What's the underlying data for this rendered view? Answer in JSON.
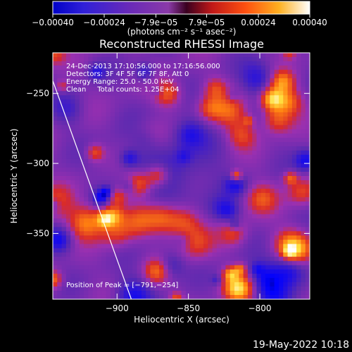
{
  "chart_data": {
    "type": "heatmap",
    "title": "Reconstructed RHESSI Image",
    "xlabel": "Heliocentric X (arcsec)",
    "ylabel": "Heliocentric Y (arcsec)",
    "xlim": [
      -945,
      -765
    ],
    "ylim": [
      -397,
      -221
    ],
    "x_ticks": [
      -900,
      -850,
      -800
    ],
    "x_tick_labels": [
      "−900",
      "−850",
      "−800"
    ],
    "y_ticks": [
      -250,
      -300,
      -350
    ],
    "y_tick_labels": [
      "−250",
      "−300",
      "−350"
    ],
    "colorbar": {
      "min": -0.0004,
      "max": 0.0004,
      "tick_values": [
        -0.0004,
        -0.00024,
        -7.9e-05,
        7.9e-05,
        0.00024,
        0.0004
      ],
      "tick_labels": [
        "−0.00040",
        "−0.00024",
        "−7.9e−05",
        "7.9e−05",
        "0.00024",
        "0.00040"
      ],
      "units_label": "(photons cm⁻² s⁻¹ asec⁻²)"
    },
    "annotations": [
      "24-Dec-2013 17:10:56.000 to 17:16:56.000",
      "Detectors: 3F 4F 5F 6F 7F 8F, Att 0",
      "Energy Range: 25.0 - 50.0 keV",
      "Clean     Total counts: 1.25E+04"
    ],
    "peak_label": "Position of Peak = [−791,−254]",
    "peak_position": [
      -791,
      -254
    ],
    "limb_points": [
      [
        -945,
        -241
      ],
      [
        -890,
        -397
      ]
    ],
    "colors": {
      "colormap": [
        "#000000",
        "#0000ff",
        "#5a2ab0",
        "#9a30b0",
        "#d82a2a",
        "#ff8010",
        "#ffe040",
        "#ffffff"
      ],
      "axis": "#ffffff",
      "background": "#000000"
    }
  },
  "footer": {
    "date": "19-May-2022 10:18"
  }
}
